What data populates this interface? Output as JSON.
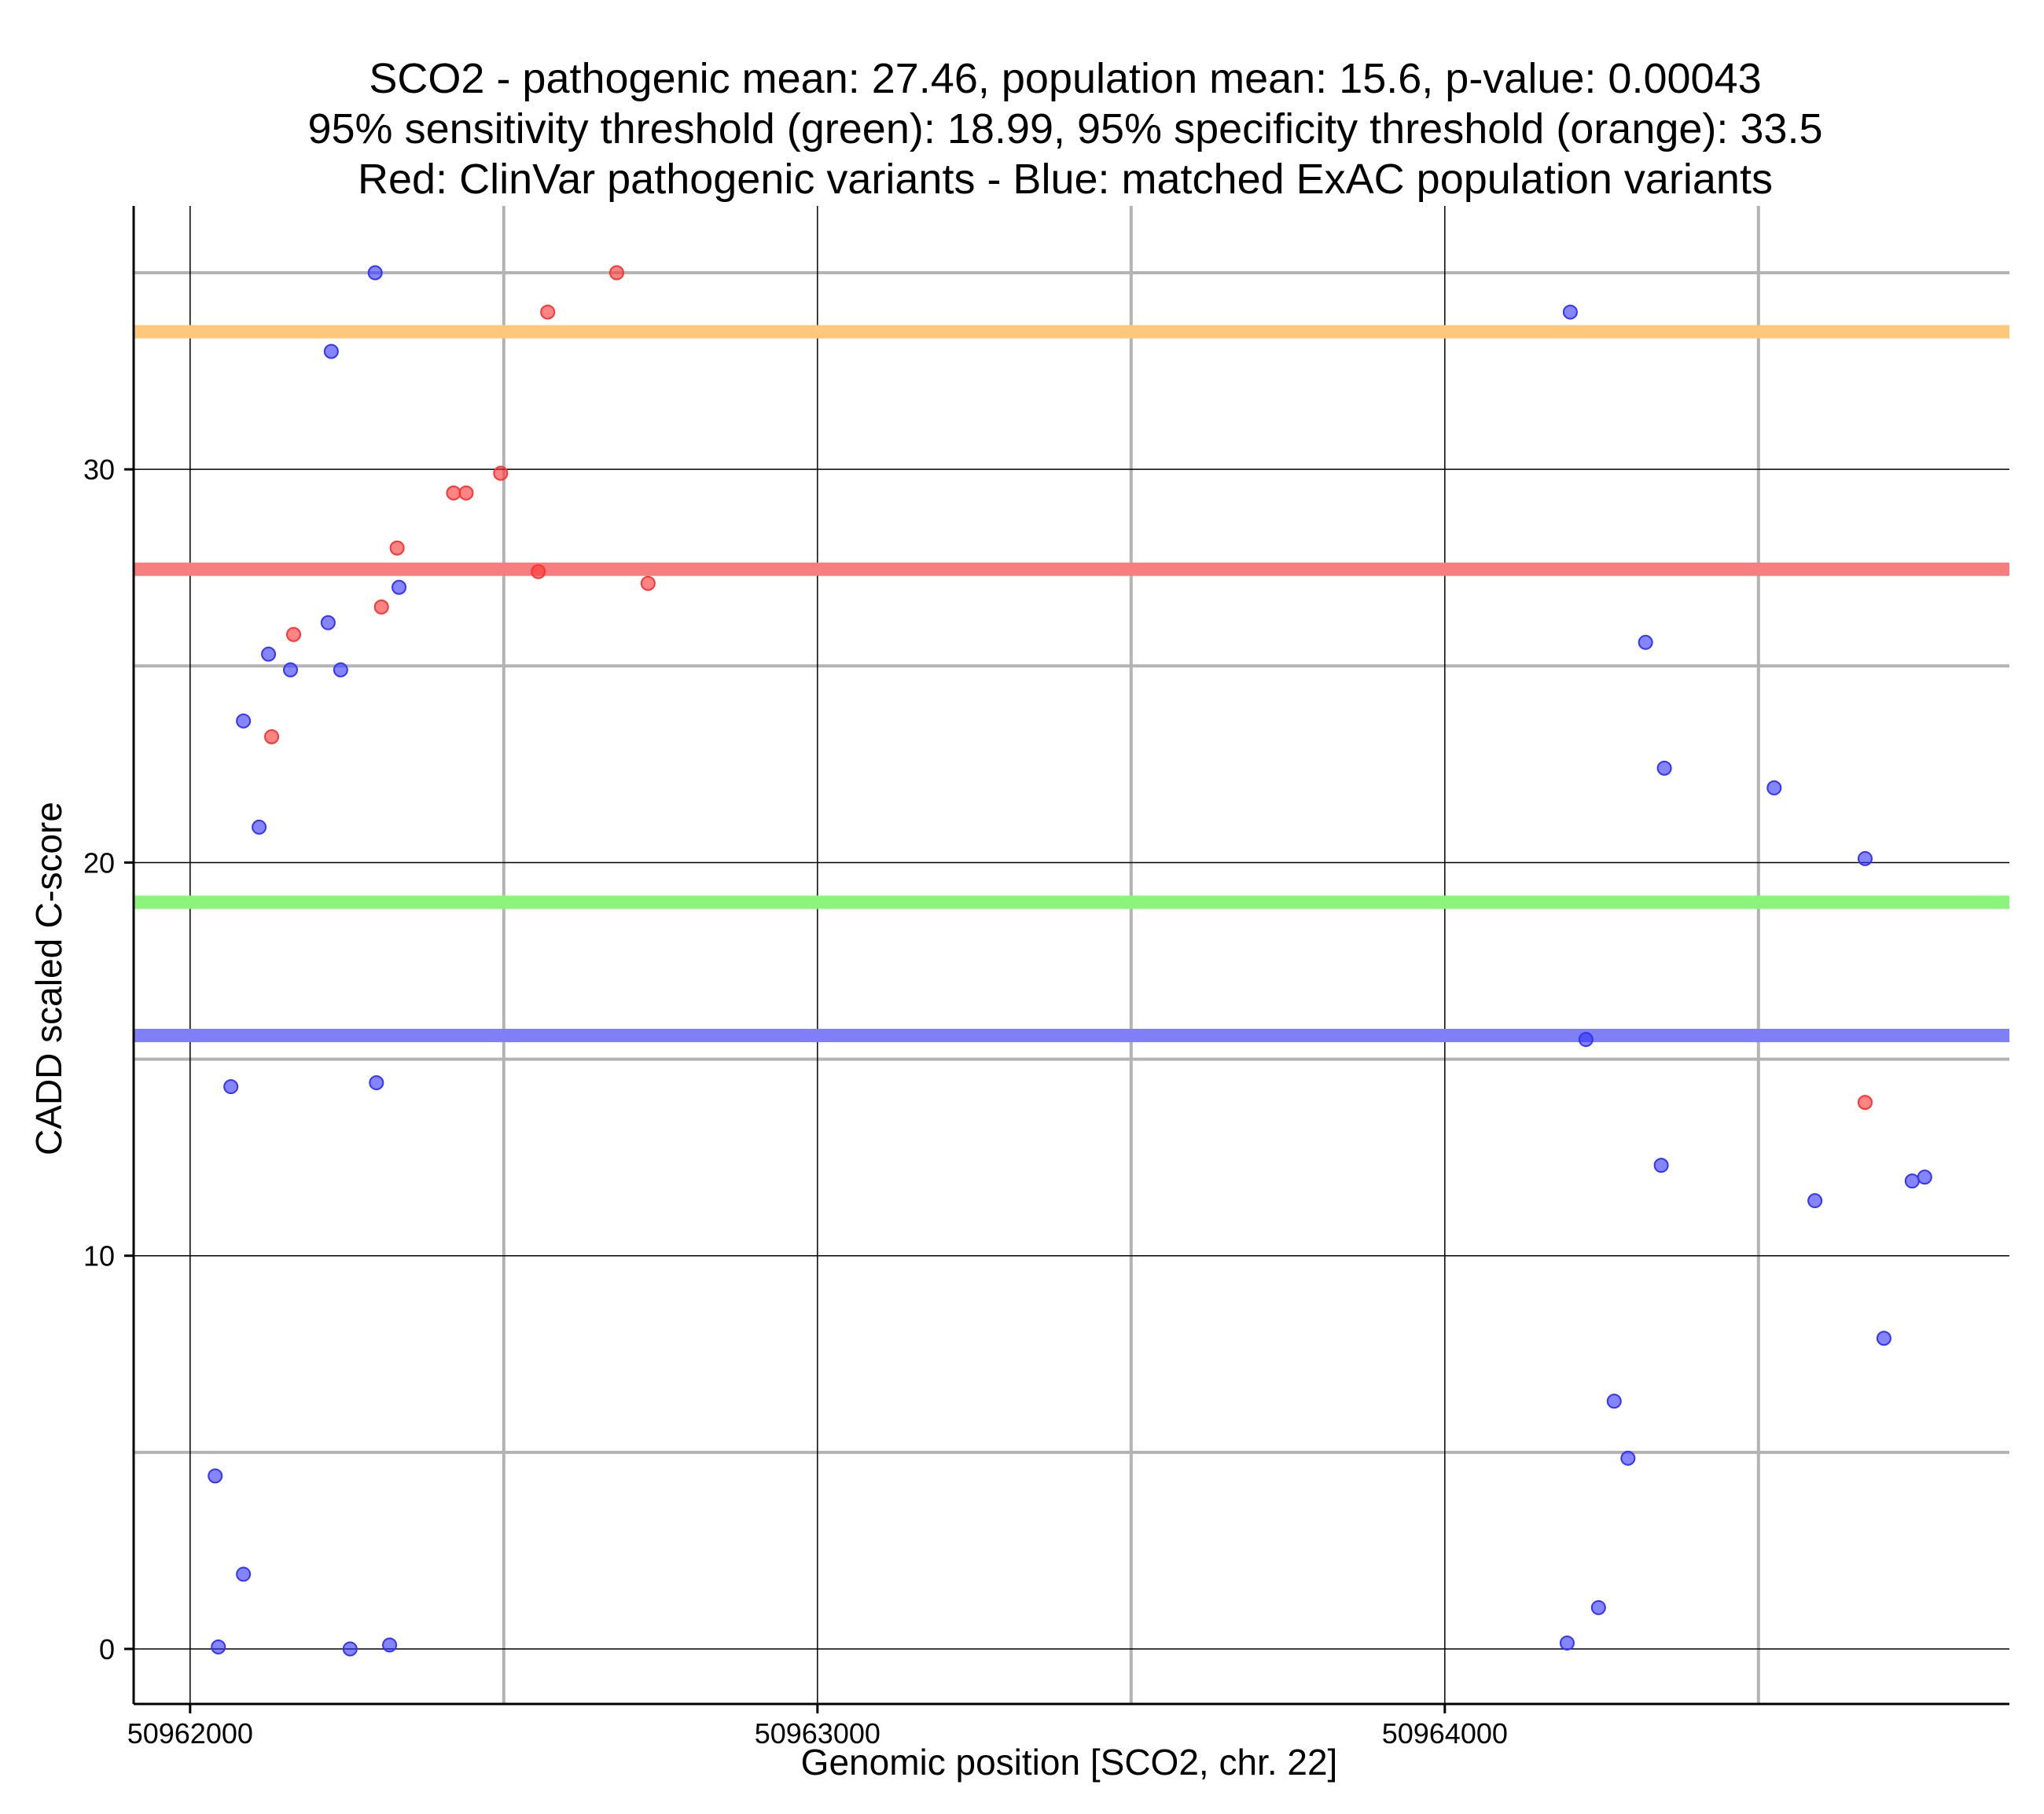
{
  "chart_data": {
    "type": "scatter",
    "title_lines": [
      "SCO2 - pathogenic mean: 27.46, population mean: 15.6, p-value: 0.00043",
      "95% sensitivity threshold (green): 18.99, 95% specificity threshold (orange): 33.5",
      "Red: ClinVar pathogenic variants - Blue: matched ExAC population variants"
    ],
    "xlabel": "Genomic position [SCO2, chr. 22]",
    "ylabel": "CADD scaled C-score",
    "xlim": [
      50961910,
      50964900
    ],
    "ylim": [
      -1.4,
      36.7
    ],
    "x_ticks": [
      50962000,
      50963000,
      50964000
    ],
    "x_tick_labels": [
      "50962000",
      "50963000",
      "50964000"
    ],
    "x_minor_gridlines": [
      50962500,
      50963500,
      50964500
    ],
    "y_ticks": [
      0,
      10,
      20,
      30
    ],
    "y_tick_labels": [
      "0",
      "10",
      "20",
      "30"
    ],
    "y_minor_gridlines": [
      5,
      15,
      25,
      35
    ],
    "grid": true,
    "hlines": [
      {
        "name": "95% specificity threshold",
        "y": 33.5,
        "color": "#fdc87c"
      },
      {
        "name": "pathogenic mean",
        "y": 27.46,
        "color": "#f77e7e"
      },
      {
        "name": "95% sensitivity threshold",
        "y": 18.99,
        "color": "#8af57a"
      },
      {
        "name": "population mean",
        "y": 15.6,
        "color": "#7f7ff7"
      }
    ],
    "series": [
      {
        "name": "Red: ClinVar pathogenic variants",
        "color": "#ff3333",
        "points": [
          [
            50962130,
            23.2
          ],
          [
            50962165,
            25.8
          ],
          [
            50962305,
            26.5
          ],
          [
            50962330,
            28.0
          ],
          [
            50962420,
            29.4
          ],
          [
            50962440,
            29.4
          ],
          [
            50962495,
            29.9
          ],
          [
            50962555,
            27.4
          ],
          [
            50962570,
            34.0
          ],
          [
            50962680,
            35.0
          ],
          [
            50962730,
            27.1
          ],
          [
            50964670,
            13.9
          ]
        ]
      },
      {
        "name": "Blue: matched ExAC population variants",
        "color": "#3333ff",
        "points": [
          [
            50962040,
            4.4
          ],
          [
            50962045,
            0.05
          ],
          [
            50962065,
            14.3
          ],
          [
            50962085,
            23.6
          ],
          [
            50962085,
            1.9
          ],
          [
            50962110,
            20.9
          ],
          [
            50962125,
            25.3
          ],
          [
            50962160,
            24.9
          ],
          [
            50962220,
            26.1
          ],
          [
            50962225,
            33.0
          ],
          [
            50962240,
            24.9
          ],
          [
            50962255,
            0.0
          ],
          [
            50962295,
            35.0
          ],
          [
            50962297,
            14.4
          ],
          [
            50962318,
            0.1
          ],
          [
            50962333,
            27.0
          ],
          [
            50964200,
            34.0
          ],
          [
            50964195,
            0.15
          ],
          [
            50964225,
            15.5
          ],
          [
            50964245,
            1.05
          ],
          [
            50964270,
            6.3
          ],
          [
            50964292,
            4.85
          ],
          [
            50964320,
            25.6
          ],
          [
            50964345,
            12.3
          ],
          [
            50964350,
            22.4
          ],
          [
            50964525,
            21.9
          ],
          [
            50964590,
            11.4
          ],
          [
            50964670,
            20.1
          ],
          [
            50964700,
            7.9
          ],
          [
            50964745,
            11.9
          ],
          [
            50964765,
            12.0
          ]
        ]
      }
    ]
  }
}
